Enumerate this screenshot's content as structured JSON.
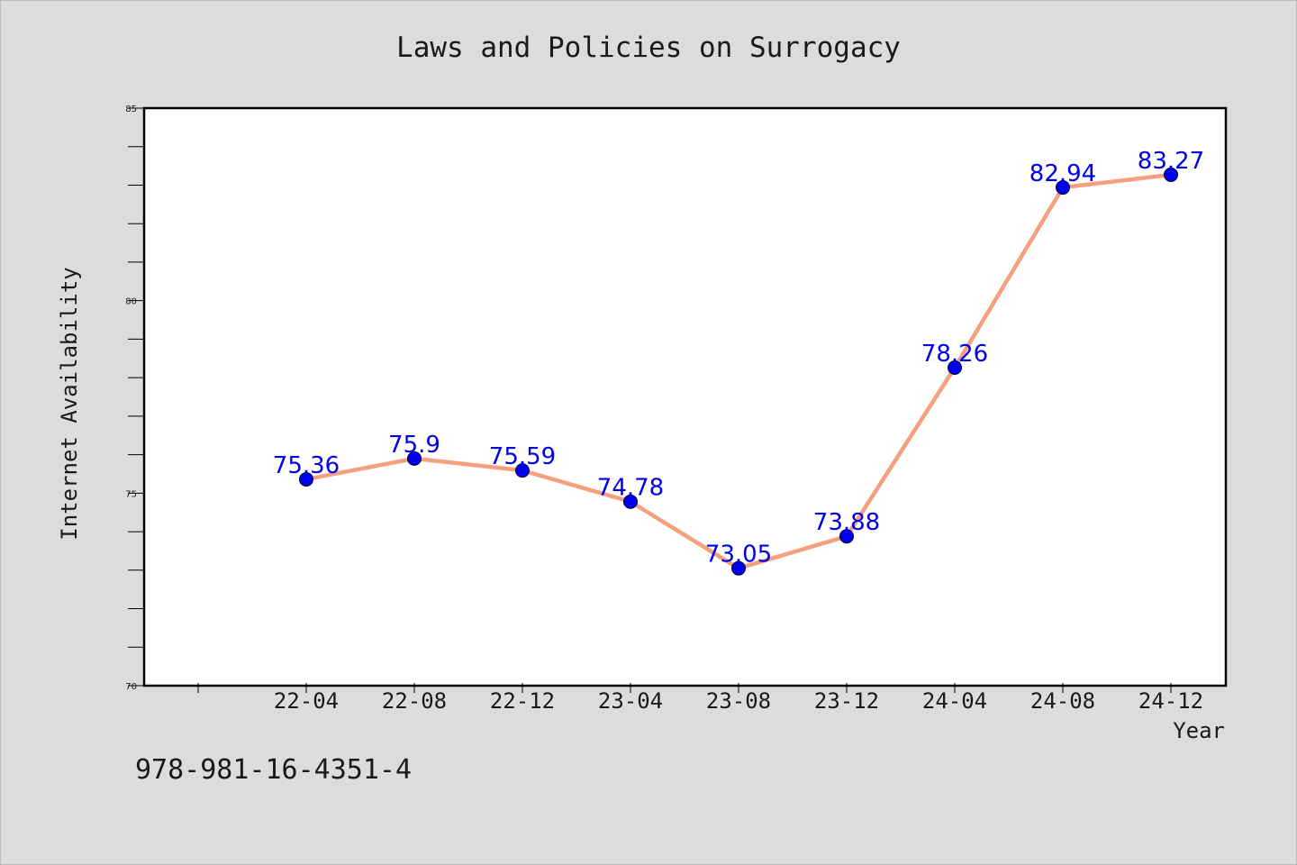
{
  "chart_data": {
    "type": "line",
    "title": "Laws and Policies on Surrogacy",
    "xlabel": "Year",
    "ylabel": "Internet Availability",
    "categories": [
      "22-04",
      "22-08",
      "22-12",
      "23-04",
      "23-08",
      "23-12",
      "24-04",
      "24-08",
      "24-12"
    ],
    "series": [
      {
        "values": [
          75.36,
          75.9,
          75.59,
          74.78,
          73.05,
          73.88,
          78.26,
          82.94,
          83.27
        ],
        "labels": [
          "75.36",
          "75.9",
          "75.59",
          "74.78",
          "73.05",
          "73.88",
          "78.26",
          "82.94",
          "83.27"
        ]
      }
    ],
    "ylim": [
      70,
      85
    ],
    "yticks": [
      70,
      75,
      80,
      85
    ],
    "ytick_labels": [
      "70",
      "75",
      "80",
      "85"
    ],
    "grid": false,
    "line_color": "#f4a07e",
    "marker_color": "#0000ee",
    "label_color": "#0000ee"
  },
  "footer": {
    "isbn": "978-981-16-4351-4"
  }
}
